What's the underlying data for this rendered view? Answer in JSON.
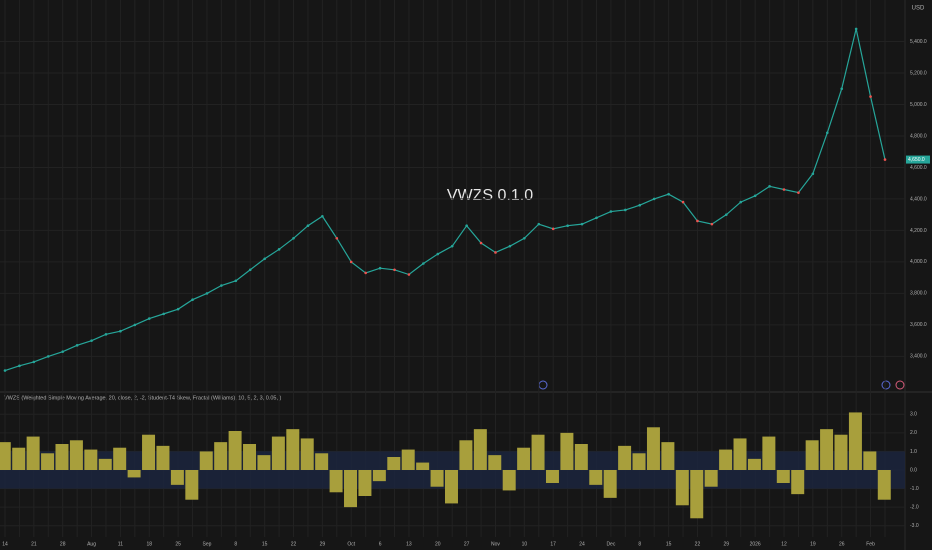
{
  "chart_data": [
    {
      "type": "line",
      "title": "VWZS 0.1.0",
      "currency": "USD",
      "categories": [
        "14",
        null,
        "21",
        null,
        "28",
        null,
        "Aug",
        null,
        "11",
        null,
        "18",
        null,
        "25",
        null,
        "Sep",
        null,
        "8",
        null,
        "15",
        null,
        "22",
        null,
        "29",
        null,
        "Oct",
        null,
        "6",
        null,
        "13",
        null,
        "20",
        null,
        "27",
        null,
        "Nov",
        null,
        "10",
        null,
        "17",
        null,
        "24",
        null,
        "Dec",
        null,
        "8",
        null,
        "15",
        null,
        "22",
        null,
        "29",
        null,
        "2026",
        null,
        "12",
        null,
        "19",
        null,
        "26",
        null,
        "Feb",
        null
      ],
      "series": [
        {
          "name": "Price",
          "color": "#26a69a",
          "down_color": "#ef5350",
          "values": [
            3310,
            3340,
            3365,
            3400,
            3430,
            3470,
            3500,
            3540,
            3560,
            3600,
            3640,
            3670,
            3700,
            3760,
            3800,
            3850,
            3880,
            3950,
            4020,
            4080,
            4150,
            4230,
            4290,
            4150,
            4000,
            3930,
            3960,
            3950,
            3920,
            3990,
            4050,
            4100,
            4230,
            4120,
            4060,
            4100,
            4150,
            4240,
            4210,
            4230,
            4240,
            4280,
            4320,
            4330,
            4360,
            4400,
            4430,
            4380,
            4260,
            4240,
            4300,
            4380,
            4420,
            4480,
            4460,
            4440,
            4560,
            4820,
            5100,
            5480,
            5050,
            4650
          ]
        }
      ],
      "last_label": "4,650.0",
      "ylim": [
        3250,
        5600
      ],
      "yticks": [
        {
          "value": 3400,
          "label": "3,400.0"
        },
        {
          "value": 3600,
          "label": "3,600.0"
        },
        {
          "value": 3800,
          "label": "3,800.0"
        },
        {
          "value": 4000,
          "label": "4,000.0"
        },
        {
          "value": 4200,
          "label": "4,200.0"
        },
        {
          "value": 4400,
          "label": "4,400.0"
        },
        {
          "value": 4600,
          "label": "4,600.0"
        },
        {
          "value": 4800,
          "label": "4,800.0"
        },
        {
          "value": 5000,
          "label": "5,000.0"
        },
        {
          "value": 5200,
          "label": "5,200.0"
        },
        {
          "value": 5400,
          "label": "5,400.0"
        }
      ],
      "grid": true
    },
    {
      "type": "bar",
      "title": "VWZS (Weighted Simple Moving Average, 20, close, 2, -2, Student-T4 Skew, Fractal (Williams), 10, 5, 2, 3, 0.05, )",
      "series": [
        {
          "name": "VWZS",
          "color": "#a89f3c",
          "values": [
            1.5,
            1.2,
            1.8,
            0.9,
            1.4,
            1.6,
            1.1,
            0.6,
            1.2,
            -0.4,
            1.9,
            1.3,
            -0.8,
            -1.6,
            1.0,
            1.5,
            2.1,
            1.4,
            0.8,
            1.8,
            2.2,
            1.7,
            0.9,
            -1.2,
            -2.0,
            -1.4,
            -0.6,
            0.7,
            1.1,
            0.4,
            -0.9,
            -1.8,
            1.6,
            2.2,
            0.8,
            -1.1,
            1.2,
            1.9,
            -0.7,
            2.0,
            1.4,
            -0.8,
            -1.5,
            1.3,
            0.9,
            2.3,
            1.5,
            -1.9,
            -2.6,
            -0.9,
            1.1,
            1.7,
            0.6,
            1.8,
            -0.7,
            -1.3,
            1.6,
            2.2,
            1.9,
            3.1,
            1.0,
            -1.6
          ]
        }
      ],
      "band": [
        -1,
        1
      ],
      "ylim": [
        -3.5,
        3.5
      ],
      "yticks": [
        {
          "value": -3,
          "label": "-3.0"
        },
        {
          "value": -2,
          "label": "-2.0"
        },
        {
          "value": -1,
          "label": "-1.0"
        },
        {
          "value": 0,
          "label": "0.0"
        },
        {
          "value": 1,
          "label": "1.0"
        },
        {
          "value": 2,
          "label": "2.0"
        },
        {
          "value": 3,
          "label": "3.0"
        }
      ],
      "grid": true
    }
  ]
}
